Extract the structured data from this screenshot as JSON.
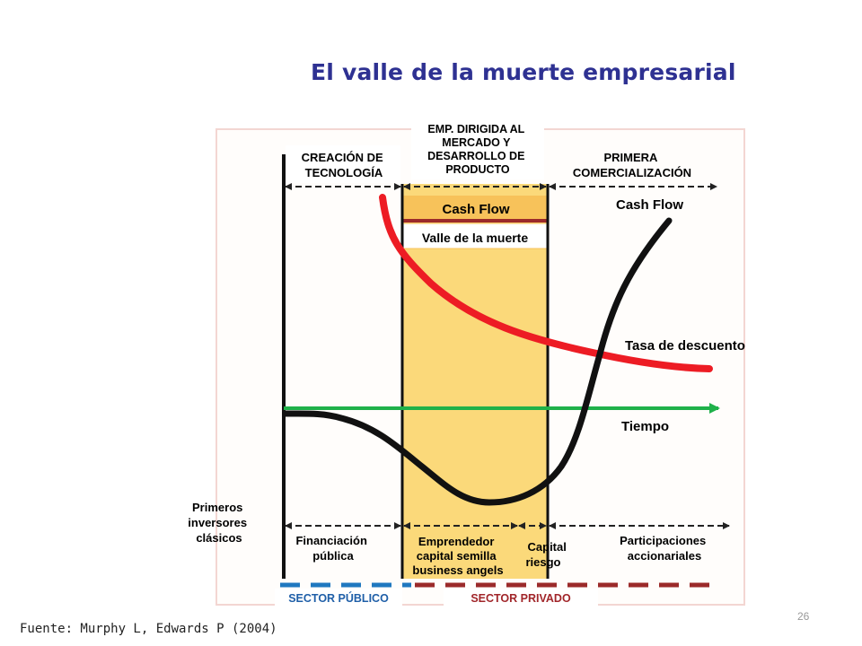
{
  "title": "El valle de la muerte empresarial",
  "source": "Fuente: Murphy L, Edwards P (2004)",
  "page_number": "26",
  "diagram": {
    "phases": {
      "creacion": [
        "CREACIÓN DE",
        "TECNOLOGÍA"
      ],
      "emp": [
        "EMP. DIRIGIDA AL",
        "MERCADO Y",
        "DESARROLLO DE",
        "PRODUCTO"
      ],
      "primera": [
        "PRIMERA",
        "COMERCIALIZACIÓN"
      ]
    },
    "valley_box": {
      "top_label": "Cash Flow",
      "bottom_label": "Valle de la muerte"
    },
    "curve_labels": {
      "cash_flow": "Cash Flow",
      "tasa": "Tasa de descuento",
      "tiempo": "Tiempo"
    },
    "investors_label": [
      "Primeros",
      "inversores",
      "clásicos"
    ],
    "financing": {
      "publica": [
        "Financiación",
        "pública"
      ],
      "emprendedor": [
        "Emprendedor",
        "capital semilla",
        "business angels"
      ],
      "capital": [
        "Capital",
        "riesgo"
      ],
      "participaciones": [
        "Participaciones",
        "accionariales"
      ]
    },
    "sectors": {
      "publico": "SECTOR PÚBLICO",
      "privado": "SECTOR PRIVADO"
    },
    "colors": {
      "title": "#2e3192",
      "valley_fill": "#fbd97a",
      "valley_header": "#f7c25a",
      "red_curve": "#ed1c24",
      "green_line": "#1fb14a",
      "public_dash": "#1f78c0",
      "private_dash": "#9b2a2a",
      "sector_publico_text": "#1f5fa8",
      "sector_privado_text": "#a1262a"
    }
  }
}
